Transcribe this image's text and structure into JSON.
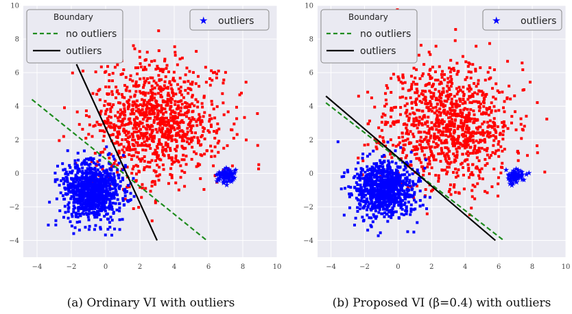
{
  "chart_data": [
    {
      "type": "scatter",
      "caption": "(a) Ordinary VI with outliers",
      "xlim": [
        -4.8,
        10
      ],
      "ylim": [
        -5,
        10
      ],
      "x_ticks": [
        "−4",
        "−2",
        "0",
        "2",
        "4",
        "6",
        "8",
        "10"
      ],
      "y_ticks": [
        "−4",
        "−2",
        "0",
        "2",
        "4",
        "6",
        "8",
        "10"
      ],
      "grid": true,
      "clusters": {
        "red": {
          "center": [
            3.0,
            3.0
          ],
          "std": [
            1.9,
            1.8
          ],
          "count": 1050,
          "color": "#ff0000"
        },
        "blue": {
          "center": [
            -0.8,
            -1.0
          ],
          "std": [
            0.9,
            0.85
          ],
          "count": 900,
          "color": "#0000ff"
        },
        "outliers": {
          "center": [
            7.0,
            -0.1
          ],
          "std": [
            0.25,
            0.22
          ],
          "count": 60,
          "color": "#0000ff"
        }
      },
      "legend_boundary": {
        "title": "Boundary",
        "placement": "top-left",
        "entries": [
          {
            "label": "no outliers",
            "style": "dashed",
            "color": "#1e8c1e"
          },
          {
            "label": "outliers",
            "style": "solid",
            "color": "#000000"
          }
        ]
      },
      "legend_outliers": {
        "placement": "top-right",
        "label": "outliers",
        "marker": "star",
        "color": "#0000ff"
      },
      "lines": [
        {
          "name": "no outliers",
          "style": "dashed",
          "color": "#1e8c1e",
          "points": [
            [
              -4.3,
              4.4
            ],
            [
              5.9,
              -4.0
            ]
          ]
        },
        {
          "name": "outliers",
          "style": "solid",
          "color": "#000000",
          "points": [
            [
              -1.7,
              6.5
            ],
            [
              3.0,
              -4.0
            ]
          ]
        }
      ]
    },
    {
      "type": "scatter",
      "caption": "(b) Proposed VI (β=0.4) with outliers",
      "xlim": [
        -4.8,
        10
      ],
      "ylim": [
        -5,
        10
      ],
      "x_ticks": [
        "−4",
        "−2",
        "0",
        "2",
        "4",
        "6",
        "8",
        "10"
      ],
      "y_ticks": [
        "−4",
        "−2",
        "0",
        "2",
        "4",
        "6",
        "8",
        "10"
      ],
      "grid": true,
      "clusters": {
        "red": {
          "center": [
            3.0,
            3.0
          ],
          "std": [
            1.9,
            1.8
          ],
          "count": 1050,
          "color": "#ff0000"
        },
        "blue": {
          "center": [
            -0.8,
            -1.0
          ],
          "std": [
            0.9,
            0.85
          ],
          "count": 900,
          "color": "#0000ff"
        },
        "outliers": {
          "center": [
            7.0,
            -0.1
          ],
          "std": [
            0.25,
            0.22
          ],
          "count": 60,
          "color": "#0000ff"
        }
      },
      "legend_boundary": {
        "title": "Boundary",
        "placement": "top-left",
        "entries": [
          {
            "label": "no outliers",
            "style": "dashed",
            "color": "#1e8c1e"
          },
          {
            "label": "outliers",
            "style": "solid",
            "color": "#000000"
          }
        ]
      },
      "legend_outliers": {
        "placement": "top-right",
        "label": "outliers",
        "marker": "star",
        "color": "#0000ff"
      },
      "lines": [
        {
          "name": "no outliers",
          "style": "dashed",
          "color": "#1e8c1e",
          "points": [
            [
              -4.3,
              4.2
            ],
            [
              6.3,
              -4.0
            ]
          ]
        },
        {
          "name": "outliers",
          "style": "solid",
          "color": "#000000",
          "points": [
            [
              -4.3,
              4.6
            ],
            [
              5.8,
              -4.0
            ]
          ]
        }
      ]
    }
  ]
}
